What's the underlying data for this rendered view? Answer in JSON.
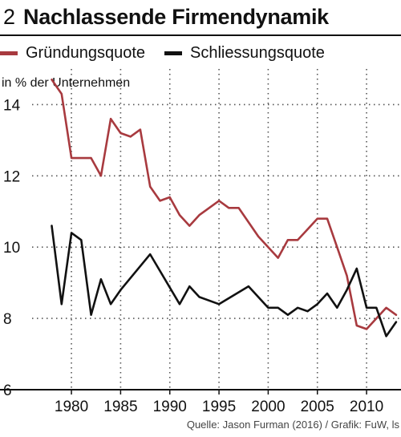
{
  "header": {
    "number": "2",
    "title": "Nachlassende Firmendynamik"
  },
  "footer": {
    "source": "Quelle: Jason Furman (2016) / Grafik: FuW, ls"
  },
  "colors": {
    "series1": "#a83a3f",
    "series2": "#111111",
    "grid": "#555555"
  },
  "chart_data": {
    "type": "line",
    "title": "Nachlassende Firmendynamik",
    "ylabel": "in  % der Unternehmen",
    "xlabel": "",
    "xlim": [
      1976,
      2013.5
    ],
    "ylim": [
      6,
      15
    ],
    "x_ticks": [
      1980,
      1985,
      1990,
      1995,
      2000,
      2005,
      2010
    ],
    "y_ticks": [
      6,
      8,
      10,
      12,
      14
    ],
    "grid": true,
    "legend_position": "top",
    "series": [
      {
        "name": "Gründungsquote",
        "color": "#a83a3f",
        "points": [
          [
            1978,
            14.7
          ],
          [
            1979,
            14.3
          ],
          [
            1980,
            12.5
          ],
          [
            1981,
            12.5
          ],
          [
            1982,
            12.5
          ],
          [
            1983,
            12.0
          ],
          [
            1984,
            13.6
          ],
          [
            1985,
            13.2
          ],
          [
            1986,
            13.1
          ],
          [
            1987,
            13.3
          ],
          [
            1988,
            11.7
          ],
          [
            1989,
            11.3
          ],
          [
            1990,
            11.4
          ],
          [
            1991,
            10.9
          ],
          [
            1992,
            10.6
          ],
          [
            1993,
            10.9
          ],
          [
            1994,
            11.1
          ],
          [
            1995,
            11.3
          ],
          [
            1996,
            11.1
          ],
          [
            1997,
            11.1
          ],
          [
            1998,
            10.7
          ],
          [
            1999,
            10.3
          ],
          [
            2000,
            10.0
          ],
          [
            2001,
            9.7
          ],
          [
            2002,
            10.2
          ],
          [
            2003,
            10.2
          ],
          [
            2004,
            10.5
          ],
          [
            2005,
            10.8
          ],
          [
            2006,
            10.8
          ],
          [
            2007,
            10.0
          ],
          [
            2008,
            9.2
          ],
          [
            2009,
            7.8
          ],
          [
            2010,
            7.7
          ],
          [
            2011,
            8.0
          ],
          [
            2012,
            8.3
          ],
          [
            2013,
            8.1
          ]
        ]
      },
      {
        "name": "Schliessungsquote",
        "color": "#111111",
        "points": [
          [
            1978,
            10.6
          ],
          [
            1979,
            8.4
          ],
          [
            1980,
            10.4
          ],
          [
            1981,
            10.2
          ],
          [
            1982,
            8.1
          ],
          [
            1983,
            9.1
          ],
          [
            1984,
            8.4
          ],
          [
            1985,
            8.8
          ],
          [
            1988,
            9.8
          ],
          [
            1991,
            8.4
          ],
          [
            1992,
            8.9
          ],
          [
            1993,
            8.6
          ],
          [
            1995,
            8.4
          ],
          [
            1998,
            8.9
          ],
          [
            2000,
            8.3
          ],
          [
            2001,
            8.3
          ],
          [
            2002,
            8.1
          ],
          [
            2003,
            8.3
          ],
          [
            2004,
            8.2
          ],
          [
            2005,
            8.4
          ],
          [
            2006,
            8.7
          ],
          [
            2007,
            8.3
          ],
          [
            2008,
            8.8
          ],
          [
            2009,
            9.4
          ],
          [
            2010,
            8.3
          ],
          [
            2011,
            8.3
          ],
          [
            2012,
            7.5
          ],
          [
            2013,
            7.9
          ]
        ]
      }
    ]
  }
}
